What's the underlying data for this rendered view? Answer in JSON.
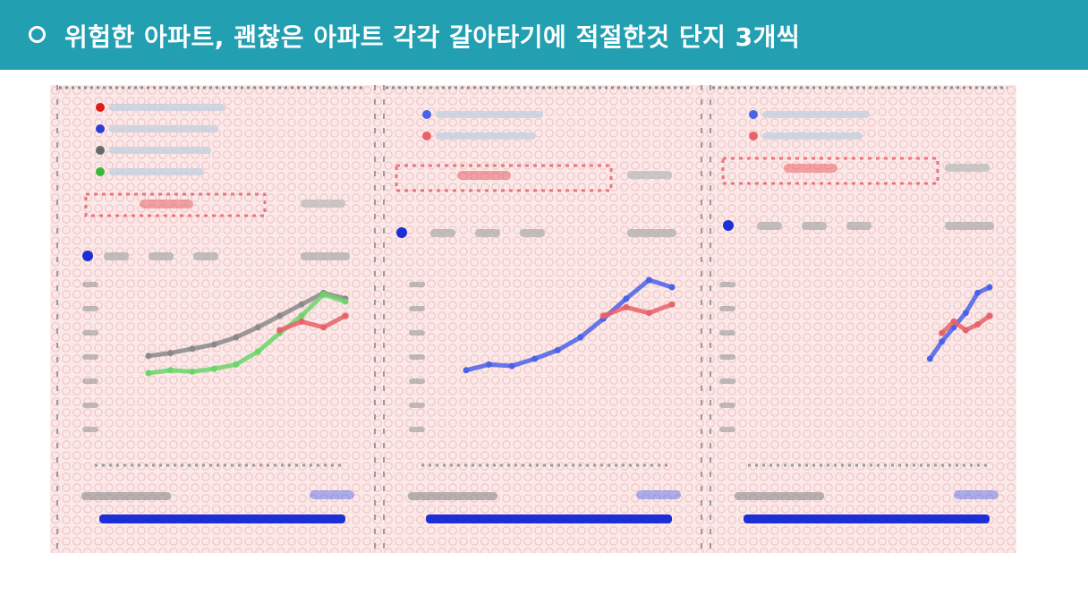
{
  "slide": {
    "title": "위험한 아파트, 괜찮은 아파트 각각 갈아타기에 적절한것 단지 3개씩",
    "bullet": "circle-bullet"
  },
  "colors": {
    "header_bg": "#239fb2",
    "header_text": "#ffffff",
    "panel_bg": "#fbe9e9",
    "series_gray": "#8a8a8a",
    "series_green": "#6ad66a",
    "series_red": "#e8626a",
    "series_blue": "#4a62e8",
    "volume_blue": "#1c2fd6"
  },
  "chart_data": [
    {
      "type": "line",
      "series": [
        {
          "color": "#8a8a8a",
          "values": [
            0.42,
            0.44,
            0.47,
            0.5,
            0.55,
            0.62,
            0.7,
            0.78,
            0.86,
            0.82
          ]
        },
        {
          "color": "#6ad66a",
          "values": [
            0.3,
            0.32,
            0.31,
            0.33,
            0.36,
            0.45,
            0.58,
            0.7,
            0.85,
            0.8
          ]
        },
        {
          "color": "#e8626a",
          "values": [
            null,
            null,
            null,
            null,
            null,
            null,
            0.6,
            0.66,
            0.62,
            0.7
          ]
        }
      ]
    },
    {
      "type": "line",
      "series": [
        {
          "color": "#4a62e8",
          "values": [
            0.32,
            0.36,
            0.35,
            0.4,
            0.46,
            0.55,
            0.68,
            0.82,
            0.95,
            0.9
          ]
        },
        {
          "color": "#e8626a",
          "values": [
            null,
            null,
            null,
            null,
            null,
            null,
            0.7,
            0.76,
            0.72,
            0.78
          ]
        }
      ]
    },
    {
      "type": "line",
      "series": [
        {
          "color": "#4a62e8",
          "values": [
            null,
            null,
            null,
            null,
            0.4,
            0.52,
            0.62,
            0.72,
            0.86,
            0.9
          ]
        },
        {
          "color": "#e8626a",
          "values": [
            null,
            null,
            null,
            null,
            null,
            0.58,
            0.66,
            0.6,
            0.64,
            0.7
          ]
        }
      ]
    }
  ]
}
